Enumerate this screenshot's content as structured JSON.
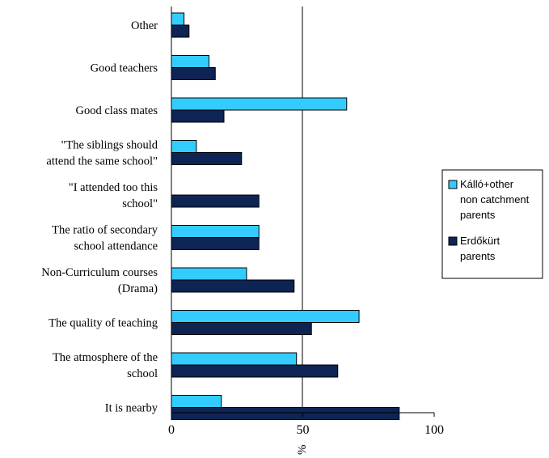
{
  "chart_data": {
    "type": "bar",
    "orientation": "horizontal",
    "categories": [
      [
        "Other"
      ],
      [
        "Good teachers"
      ],
      [
        "Good class mates"
      ],
      [
        "\"The siblings should",
        "attend the same school\""
      ],
      [
        "\"I attended too this",
        "school\""
      ],
      [
        "The ratio of secondary",
        "school attendance"
      ],
      [
        "Non-Curriculum courses",
        "(Drama)"
      ],
      [
        "The quality of teaching"
      ],
      [
        "The atmosphere of the",
        "school"
      ],
      [
        "It is nearby"
      ]
    ],
    "series": [
      {
        "name": [
          "Kálló+other",
          "non catchment",
          "parents"
        ],
        "color": "#33ccff",
        "values": [
          4.8,
          14.3,
          66.7,
          9.5,
          0,
          33.3,
          28.6,
          71.4,
          47.6,
          19
        ]
      },
      {
        "name": [
          "Erdőkürt",
          "parents"
        ],
        "color": "#0d2454",
        "values": [
          6.7,
          16.7,
          20,
          26.7,
          33.3,
          33.3,
          46.7,
          53.3,
          63.3,
          86.7
        ]
      }
    ],
    "xlabel": "%",
    "xlim": [
      0,
      100
    ],
    "xticks": [
      "0",
      "50",
      "100"
    ],
    "gridlines": [
      50
    ],
    "legend": "right"
  }
}
